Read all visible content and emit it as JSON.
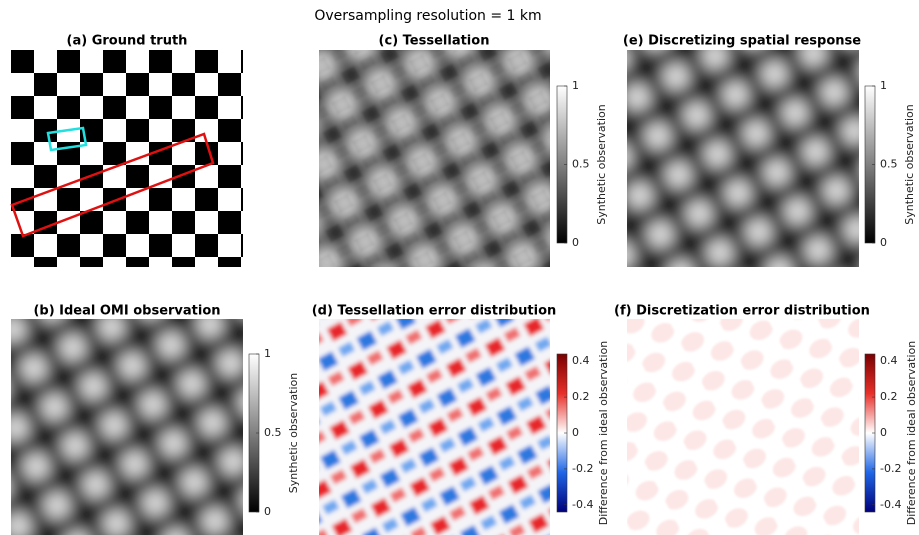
{
  "title": "Oversampling resolution = 1 km",
  "panels": [
    {
      "title": "(a) Ground truth"
    },
    {
      "title": "(c) Tessellation",
      "colorbar": {
        "label": "Synthetic observation",
        "colormap": "gray",
        "lim": [
          0,
          1
        ],
        "ticks": [
          0,
          0.5,
          1
        ]
      }
    },
    {
      "title": "(e) Discretizing spatial response",
      "colorbar": {
        "label": "Synthetic observation",
        "colormap": "gray",
        "lim": [
          0,
          1
        ],
        "ticks": [
          0,
          0.5,
          1
        ]
      }
    },
    {
      "title": "(b) Ideal OMI observation",
      "colorbar": {
        "label": "Synthetic observation",
        "colormap": "gray",
        "lim": [
          0,
          1
        ],
        "ticks": [
          0,
          0.5,
          1
        ]
      }
    },
    {
      "title": "(d) Tessellation error distribution",
      "colorbar": {
        "label": "Difference from ideal observation",
        "colormap": "diverging",
        "lim": [
          -0.44,
          0.44
        ],
        "ticks": [
          -0.4,
          -0.2,
          0,
          0.2,
          0.4
        ]
      }
    },
    {
      "title": "(f) Discretization error distribution",
      "colorbar": {
        "label": "Difference from ideal observation",
        "colormap": "diverging",
        "lim": [
          -0.44,
          0.44
        ],
        "ticks": [
          -0.4,
          -0.2,
          0,
          0.2,
          0.4
        ]
      }
    }
  ]
}
